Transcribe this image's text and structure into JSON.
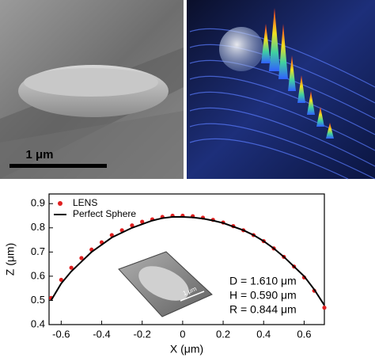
{
  "panels": {
    "sem_scale_bar": "1 μm"
  },
  "chart_data": {
    "type": "scatter",
    "x_label": "X (μm)",
    "y_label": "Z (μm)",
    "xlim": [
      -0.66,
      0.7
    ],
    "ylim": [
      0.4,
      0.94
    ],
    "xticks": [
      -0.6,
      -0.4,
      -0.2,
      0.0,
      0.2,
      0.4,
      0.6
    ],
    "yticks": [
      0.4,
      0.5,
      0.6,
      0.7,
      0.8,
      0.9
    ],
    "x": [
      -0.65,
      -0.6,
      -0.55,
      -0.5,
      -0.45,
      -0.4,
      -0.35,
      -0.3,
      -0.25,
      -0.2,
      -0.15,
      -0.1,
      -0.05,
      0,
      0.05,
      0.1,
      0.15,
      0.2,
      0.25,
      0.3,
      0.35,
      0.4,
      0.45,
      0.5,
      0.55,
      0.6,
      0.65,
      0.7
    ],
    "series": [
      {
        "name": "LENS",
        "color": "#e02020",
        "style": "points",
        "values": [
          0.51,
          0.585,
          0.635,
          0.675,
          0.71,
          0.74,
          0.77,
          0.79,
          0.81,
          0.825,
          0.835,
          0.845,
          0.85,
          0.85,
          0.848,
          0.842,
          0.833,
          0.822,
          0.807,
          0.79,
          0.77,
          0.745,
          0.715,
          0.68,
          0.64,
          0.595,
          0.54,
          0.47
        ]
      },
      {
        "name": "Perfect Sphere",
        "color": "#000000",
        "style": "line",
        "values": [
          0.5,
          0.57,
          0.62,
          0.66,
          0.7,
          0.73,
          0.76,
          0.78,
          0.8,
          0.815,
          0.83,
          0.84,
          0.845,
          0.845,
          0.843,
          0.838,
          0.83,
          0.82,
          0.805,
          0.79,
          0.77,
          0.745,
          0.715,
          0.68,
          0.64,
          0.6,
          0.545,
          0.48
        ]
      }
    ],
    "annotations": [
      "D = 1.610 μm",
      "H = 0.590 μm",
      "R = 0.844 μm"
    ],
    "inset_label": "1 μm"
  }
}
